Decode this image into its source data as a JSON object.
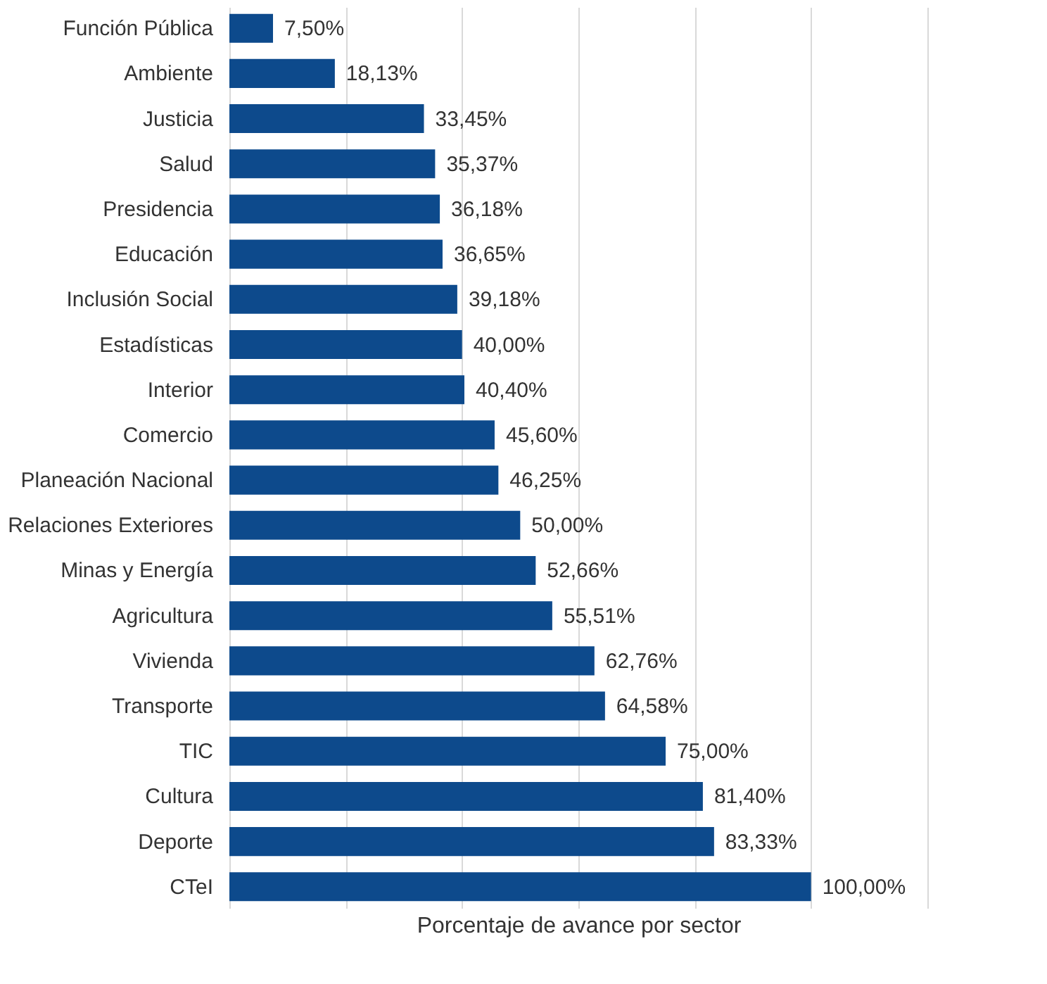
{
  "chart_data": {
    "type": "bar",
    "orientation": "horizontal",
    "xlabel": "Porcentaje de avance por sector",
    "categories": [
      "Función Pública",
      "Ambiente",
      "Justicia",
      "Salud",
      "Presidencia",
      "Educación ",
      "Inclusión Social",
      "Estadísticas",
      "Interior",
      "Comercio",
      "Planeación Nacional",
      "Relaciones Exteriores",
      "Minas y Energía ",
      "Agricultura",
      "Vivienda",
      "Transporte",
      "TIC",
      "Cultura",
      "Deporte",
      "CTeI"
    ],
    "values": [
      7.5,
      18.13,
      33.45,
      35.37,
      36.18,
      36.65,
      39.18,
      40,
      40.4,
      45.6,
      46.25,
      50,
      52.66,
      55.51,
      62.76,
      64.58,
      75,
      81.4,
      83.33,
      100
    ],
    "value_labels": [
      "7,50%",
      "18,13%",
      "33,45%",
      "35,37%",
      "36,18%",
      "36,65%",
      "39,18%",
      "40,00%",
      "40,40%",
      "45,60%",
      "46,25%",
      "50,00%",
      "52,66%",
      "55,51%",
      "62,76%",
      "64,58%",
      "75,00%",
      "81,40%",
      "83,33%",
      "100,00%"
    ],
    "color": "#0d4a8c",
    "xlim": [
      0,
      120
    ],
    "xticks": [
      {
        "value": 0,
        "label": null
      },
      {
        "value": 20,
        "label": null
      },
      {
        "value": 40,
        "label": null
      },
      {
        "value": 60,
        "label": null
      },
      {
        "value": 80,
        "label": null
      },
      {
        "value": 100,
        "label": null
      },
      {
        "value": 120,
        "label": null
      }
    ],
    "grid": "x"
  }
}
